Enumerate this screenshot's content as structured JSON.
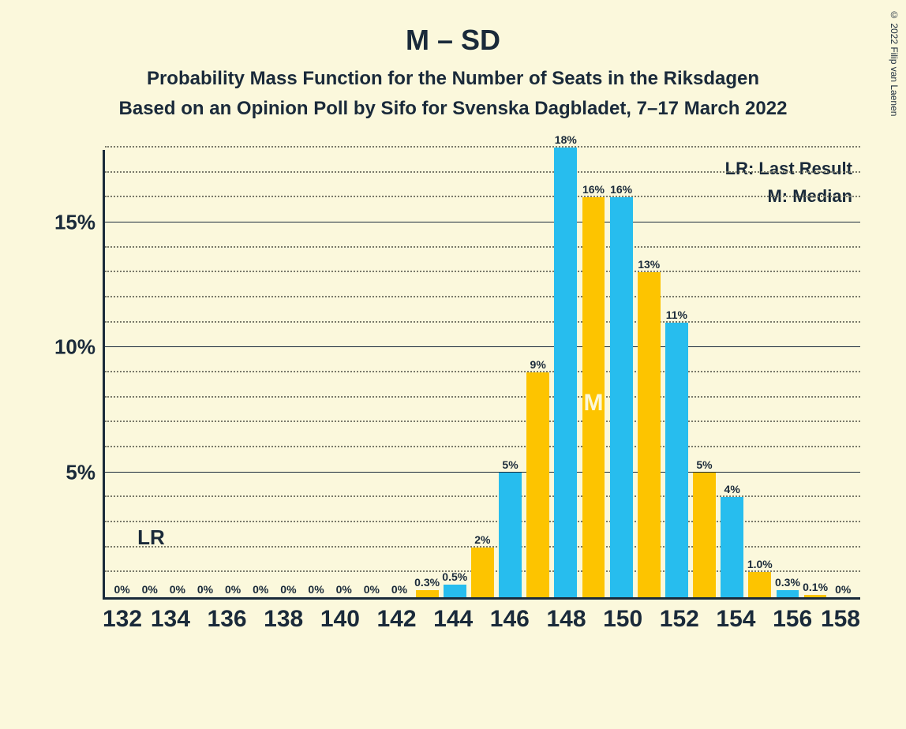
{
  "title": "M – SD",
  "subtitle1": "Probability Mass Function for the Number of Seats in the Riksdagen",
  "subtitle2": "Based on an Opinion Poll by Sifo for Svenska Dagbladet, 7–17 March 2022",
  "copyright": "© 2022 Filip van Laenen",
  "legend": {
    "lr": "LR: Last Result",
    "m": "M: Median"
  },
  "lr_marker": "LR",
  "median_marker": "M",
  "chart": {
    "type": "bar",
    "background_color": "#fbf8dc",
    "axis_color": "#1a2a3a",
    "grid_dotted_color": "#7a7a6a",
    "bar_colors": {
      "blue": "#27bdee",
      "yellow": "#fdc400"
    },
    "y_max": 18,
    "y_major_ticks": [
      5,
      10,
      15
    ],
    "y_minor_step": 1,
    "x_ticks": [
      132,
      134,
      136,
      138,
      140,
      142,
      144,
      146,
      148,
      150,
      152,
      154,
      156,
      158
    ],
    "bars": [
      {
        "x": 132,
        "c": "blue",
        "v": 0,
        "lbl": "0%"
      },
      {
        "x": 133,
        "c": "yellow",
        "v": 0,
        "lbl": "0%",
        "lr": true
      },
      {
        "x": 134,
        "c": "blue",
        "v": 0,
        "lbl": "0%"
      },
      {
        "x": 135,
        "c": "yellow",
        "v": 0,
        "lbl": "0%"
      },
      {
        "x": 136,
        "c": "blue",
        "v": 0,
        "lbl": "0%"
      },
      {
        "x": 137,
        "c": "yellow",
        "v": 0,
        "lbl": "0%"
      },
      {
        "x": 138,
        "c": "blue",
        "v": 0,
        "lbl": "0%"
      },
      {
        "x": 139,
        "c": "yellow",
        "v": 0,
        "lbl": "0%"
      },
      {
        "x": 140,
        "c": "blue",
        "v": 0,
        "lbl": "0%"
      },
      {
        "x": 141,
        "c": "yellow",
        "v": 0,
        "lbl": "0%"
      },
      {
        "x": 142,
        "c": "blue",
        "v": 0,
        "lbl": "0%"
      },
      {
        "x": 143,
        "c": "yellow",
        "v": 0.3,
        "lbl": "0.3%"
      },
      {
        "x": 144,
        "c": "blue",
        "v": 0.5,
        "lbl": "0.5%"
      },
      {
        "x": 145,
        "c": "yellow",
        "v": 2,
        "lbl": "2%"
      },
      {
        "x": 146,
        "c": "blue",
        "v": 5,
        "lbl": "5%"
      },
      {
        "x": 147,
        "c": "yellow",
        "v": 9,
        "lbl": "9%"
      },
      {
        "x": 148,
        "c": "blue",
        "v": 18,
        "lbl": "18%"
      },
      {
        "x": 149,
        "c": "yellow",
        "v": 16,
        "lbl": "16%",
        "median": true
      },
      {
        "x": 150,
        "c": "blue",
        "v": 16,
        "lbl": "16%"
      },
      {
        "x": 151,
        "c": "yellow",
        "v": 13,
        "lbl": "13%"
      },
      {
        "x": 152,
        "c": "blue",
        "v": 11,
        "lbl": "11%"
      },
      {
        "x": 153,
        "c": "yellow",
        "v": 5,
        "lbl": "5%"
      },
      {
        "x": 154,
        "c": "blue",
        "v": 4,
        "lbl": "4%"
      },
      {
        "x": 155,
        "c": "yellow",
        "v": 1.0,
        "lbl": "1.0%"
      },
      {
        "x": 156,
        "c": "blue",
        "v": 0.3,
        "lbl": "0.3%"
      },
      {
        "x": 157,
        "c": "yellow",
        "v": 0.1,
        "lbl": "0.1%"
      },
      {
        "x": 158,
        "c": "blue",
        "v": 0,
        "lbl": "0%"
      }
    ]
  }
}
